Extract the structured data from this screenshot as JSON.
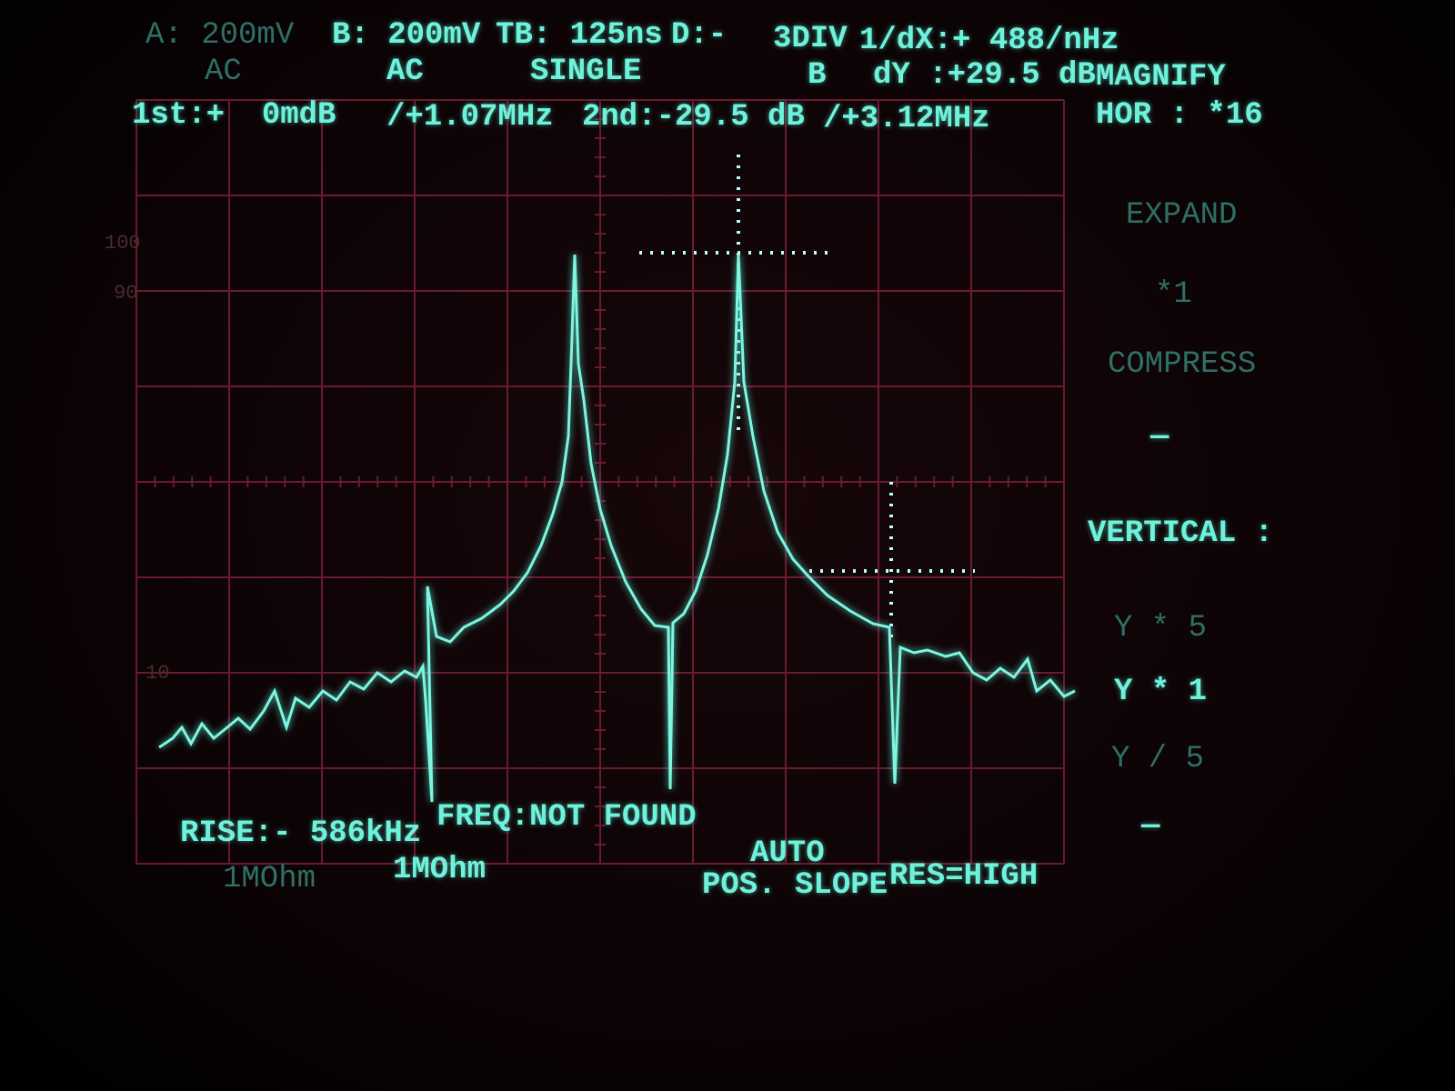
{
  "status": {
    "row1": [
      "A: 200mV",
      "B: 200mV",
      "TB: 125ns",
      "D:-",
      "3DIV",
      "1/dX:+ 488/nHz"
    ],
    "row2": [
      "AC",
      "AC",
      "SINGLE",
      "B",
      "dY :+29.5 dB",
      "MAGNIFY"
    ],
    "row3": [
      "1st:+  0mdB",
      "/+1.07MHz",
      "2nd:-29.5 dB",
      "/+3.12MHz",
      "HOR : *16"
    ]
  },
  "grid_labels": [
    "100",
    "90",
    "10"
  ],
  "menu": [
    "EXPAND",
    "*1",
    "COMPRESS",
    "—",
    "VERTICAL :",
    "Y * 5",
    "Y * 1",
    "Y / 5",
    "—"
  ],
  "footer": {
    "measure": [
      "RISE:- 586kHz",
      "FREQ:NOT FOUND"
    ],
    "inputs": [
      "1MOhm",
      "1MOhm"
    ],
    "trigger": [
      "AUTO",
      "POS. SLOPE",
      "RES=HIGH"
    ]
  }
}
